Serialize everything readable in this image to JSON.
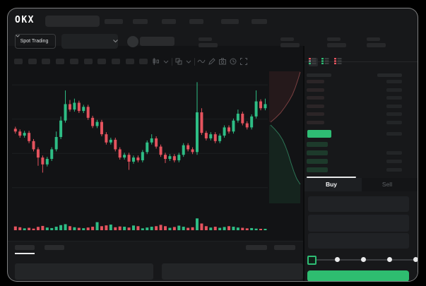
{
  "app": {
    "logo_text": "OKX"
  },
  "ticker_bar": {
    "market_type_selector": "Spot Trading"
  },
  "trade_panel": {
    "buy_tab": "Buy",
    "sell_tab": "Sell",
    "active_tab": "Buy",
    "amount_slider": {
      "position_percent": 0,
      "steps": 5
    }
  },
  "order_book": {
    "view_modes": [
      "combined",
      "bids-only",
      "asks-only"
    ],
    "ask_row_count": 6,
    "bid_row_count": 4,
    "last_price_highlight_color": "#2ebd74"
  },
  "colors": {
    "candle_green": "#2ebd85",
    "candle_red": "#e5535e",
    "accent_green": "#2ebd74",
    "accent_red": "#e8545f",
    "buy_button": "#2ebd70",
    "window_bg": "#17181a",
    "chart_bg": "#121315",
    "skeleton_bar": "#28292b",
    "bid_bar_tint": "#1d3a2b"
  },
  "skeleton": {
    "top_nav_bars": [
      26,
      21,
      20,
      20,
      25,
      22
    ],
    "ticker_stat_groups_x": [
      270,
      386,
      452,
      508
    ],
    "timeframe_bar_count": 10,
    "footer_tabs_x": [
      10,
      52
    ],
    "footer_right_bars_x": [
      337,
      377
    ]
  },
  "chart_data": {
    "type": "candlestick",
    "title": "",
    "xlabel": "",
    "ylabel": "",
    "axis_labels_visible": false,
    "grid": true,
    "value_scale": "relative 0-100 (no numeric axis labels visible in screenshot)",
    "candles_oclh": [
      [
        56,
        54,
        52.5,
        57.5
      ],
      [
        54,
        51,
        49.5,
        55.5
      ],
      [
        51,
        53,
        49.5,
        54.5
      ],
      [
        53,
        47,
        45.5,
        54.5
      ],
      [
        47,
        41,
        39.5,
        48.5
      ],
      [
        41,
        35,
        29,
        42.5
      ],
      [
        35,
        30,
        24,
        36.5
      ],
      [
        30,
        34,
        28.5,
        35.5
      ],
      [
        34,
        41,
        32.5,
        42.5
      ],
      [
        41,
        50,
        39.5,
        54
      ],
      [
        50,
        62,
        48.5,
        65
      ],
      [
        62,
        74,
        60.5,
        84
      ],
      [
        74,
        70,
        68.5,
        77
      ],
      [
        70,
        75,
        68.5,
        78
      ],
      [
        75,
        69,
        67.5,
        76.5
      ],
      [
        69,
        72,
        67.5,
        73.5
      ],
      [
        72,
        64,
        62.5,
        73.5
      ],
      [
        64,
        58,
        56.5,
        65.5
      ],
      [
        58,
        61,
        56.5,
        62.5
      ],
      [
        61,
        52,
        50.5,
        62.5
      ],
      [
        52,
        46,
        44.5,
        53.5
      ],
      [
        46,
        48,
        44.5,
        49.5
      ],
      [
        48,
        41,
        39.5,
        49.5
      ],
      [
        41,
        35,
        33.5,
        42.5
      ],
      [
        35,
        37,
        33.5,
        38.5
      ],
      [
        37,
        32,
        26,
        38.5
      ],
      [
        32,
        35,
        30.5,
        36.5
      ],
      [
        35,
        33,
        31.5,
        36.5
      ],
      [
        33,
        39,
        31.5,
        40.5
      ],
      [
        39,
        46,
        37.5,
        47.5
      ],
      [
        46,
        49,
        44.5,
        52
      ],
      [
        49,
        43,
        41.5,
        50.5
      ],
      [
        43,
        37,
        35.5,
        44.5
      ],
      [
        37,
        34,
        31,
        38.5
      ],
      [
        34,
        36,
        32.5,
        37.5
      ],
      [
        36,
        33,
        31.5,
        37.5
      ],
      [
        33,
        37,
        31.5,
        38.5
      ],
      [
        37,
        44,
        35.5,
        45.5
      ],
      [
        44,
        41,
        39.5,
        45.5
      ],
      [
        41,
        39,
        37.5,
        42.5
      ],
      [
        39,
        68,
        37,
        90
      ],
      [
        68,
        53,
        51.5,
        71
      ],
      [
        53,
        49,
        47.5,
        54.5
      ],
      [
        49,
        52,
        47.5,
        53.5
      ],
      [
        52,
        47,
        45.5,
        53.5
      ],
      [
        47,
        51,
        45.5,
        52.5
      ],
      [
        51,
        57,
        49.5,
        58.5
      ],
      [
        57,
        54,
        52.5,
        58.5
      ],
      [
        54,
        62,
        52.5,
        63.5
      ],
      [
        62,
        67,
        60.5,
        70
      ],
      [
        67,
        60,
        58.5,
        68.5
      ],
      [
        60,
        57,
        55.5,
        61.5
      ],
      [
        57,
        65,
        55.5,
        66.5
      ],
      [
        65,
        76,
        63.5,
        84
      ],
      [
        76,
        71,
        69.5,
        77.5
      ],
      [
        71,
        74,
        69.5,
        78
      ]
    ],
    "volume": [
      28,
      22,
      14,
      18,
      12,
      25,
      32,
      20,
      16,
      26,
      38,
      45,
      30,
      22,
      18,
      15,
      20,
      26,
      60,
      30,
      36,
      42,
      22,
      28,
      26,
      20,
      35,
      30,
      14,
      20,
      26,
      30,
      40,
      30,
      18,
      24,
      34,
      26,
      18,
      22,
      88,
      50,
      30,
      20,
      26,
      18,
      24,
      30,
      26,
      20,
      18,
      14,
      16,
      12,
      10,
      8
    ],
    "depth_overlay": {
      "asks_side": "top",
      "bids_side": "bottom",
      "apex_at_price_level": 60
    }
  }
}
